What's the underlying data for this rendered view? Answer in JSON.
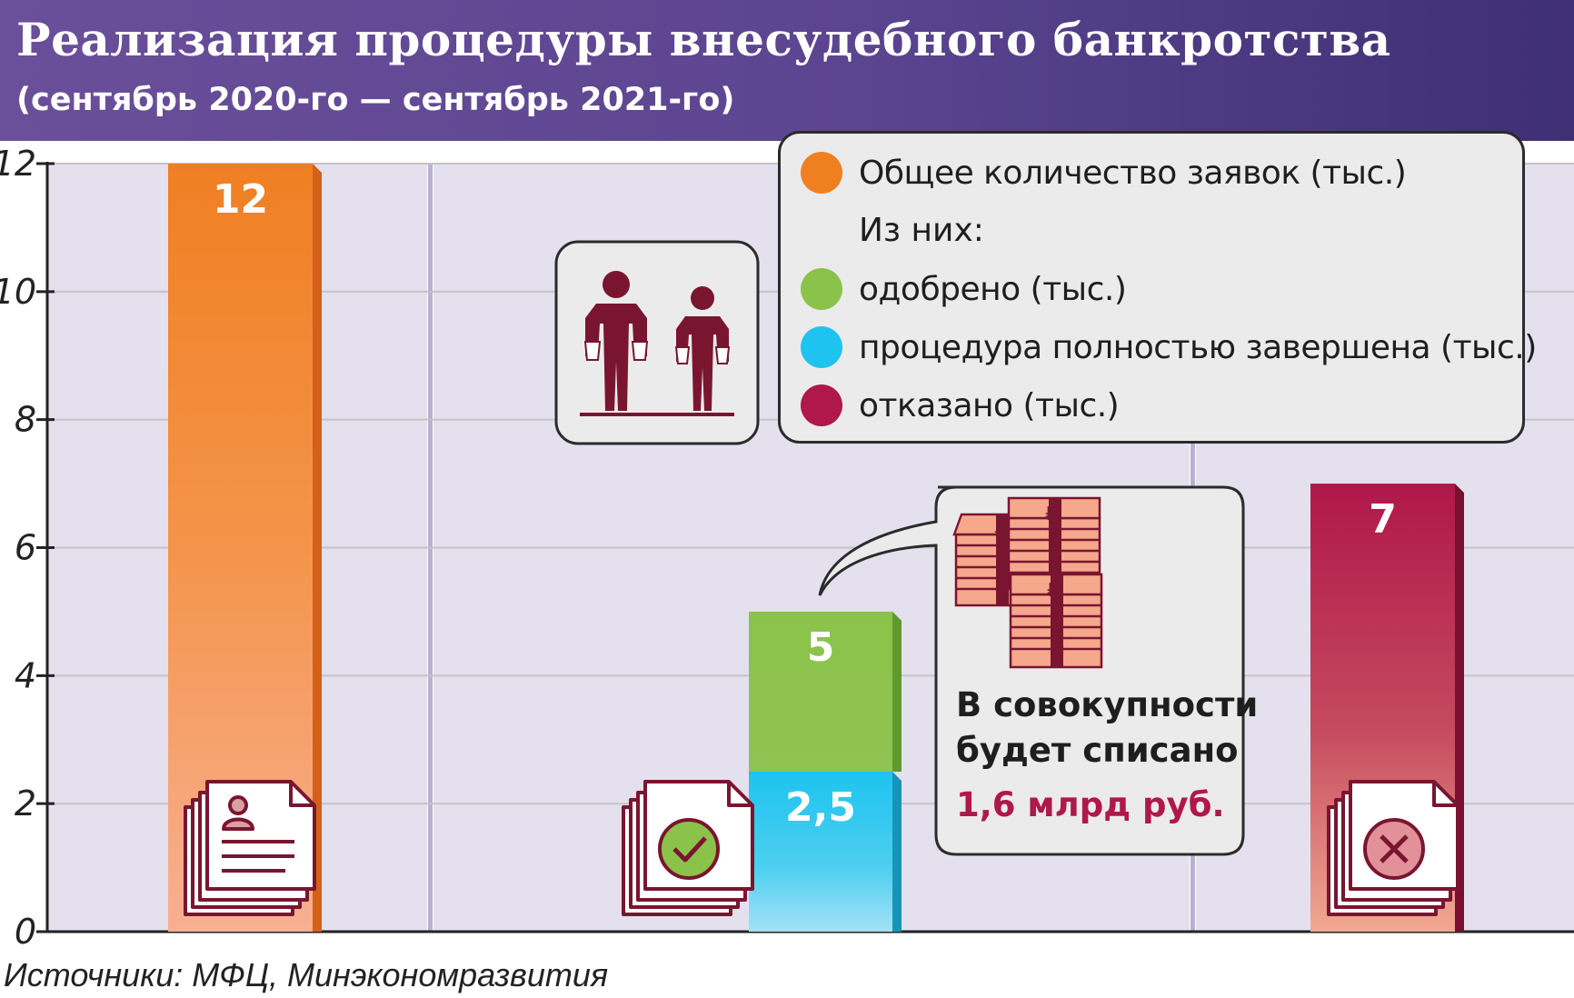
{
  "header": {
    "title": "Реализация процедуры внесудебного банкротства",
    "subtitle": "(сентябрь 2020-го — сентябрь 2021-го)"
  },
  "legend": {
    "items": [
      {
        "label": "Общее количество заявок (тыс.)",
        "color": "#f07f22"
      },
      {
        "label": "одобрено (тыс.)",
        "color": "#8bc34a"
      },
      {
        "label": "процедура полностью завершена (тыс.)",
        "color": "#1ec3f0"
      },
      {
        "label": "отказано (тыс.)",
        "color": "#b0174a"
      }
    ],
    "subheading": "Из них:"
  },
  "callout": {
    "line1": "В совокупности",
    "line2": "будет списано",
    "amount": "1,6 млрд руб.",
    "icon": "ruble-money-stacks-icon"
  },
  "icons": {
    "people": "bankrupt-people-icon",
    "applications": "application-document-icon",
    "approved": "approved-document-icon",
    "rejected": "rejected-document-icon"
  },
  "source": "Источники: МФЦ, Минэкономразвития",
  "chart_data": {
    "type": "bar",
    "ylim": [
      0,
      12
    ],
    "yticks": [
      0,
      2,
      4,
      6,
      8,
      10,
      12
    ],
    "ytick_labels": [
      "0",
      "2",
      "4",
      "6",
      "8",
      "10",
      "12"
    ],
    "grid": true,
    "legend_position": "top-right",
    "bars": [
      {
        "series": "Общее количество заявок (тыс.)",
        "value": 12,
        "label": "12",
        "color": "#f07f22"
      },
      {
        "series": "одобрено (тыс.)",
        "value": 5,
        "label": "5",
        "color": "#8bc34a"
      },
      {
        "series": "процедура полностью завершена (тыс.)",
        "value": 2.5,
        "label": "2,5",
        "color": "#1ec3f0"
      },
      {
        "series": "отказано (тыс.)",
        "value": 7,
        "label": "7",
        "color": "#b0174a"
      }
    ]
  }
}
